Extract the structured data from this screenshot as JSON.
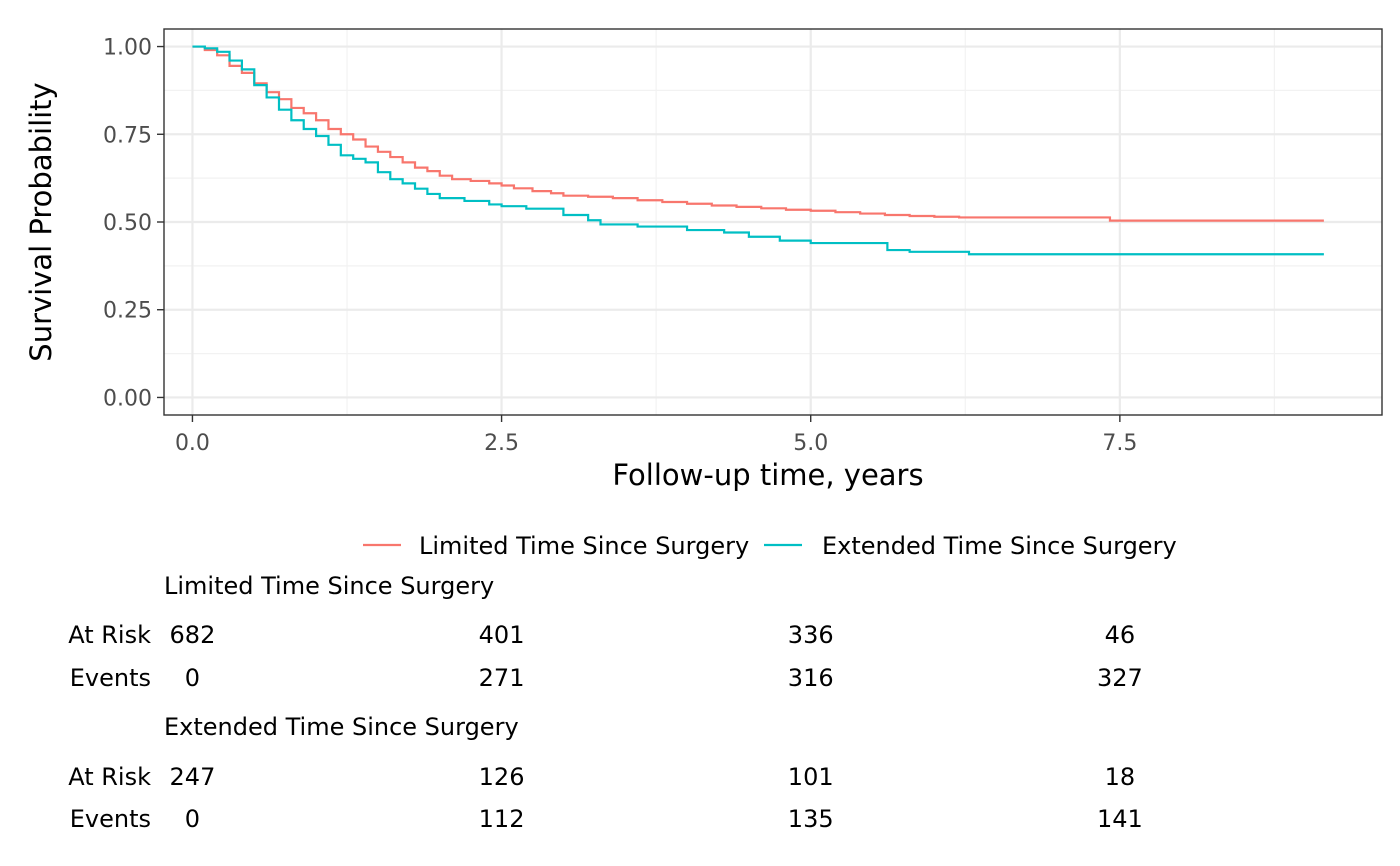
{
  "chart_data": {
    "type": "line",
    "subtype": "kaplan-meier step",
    "title": "",
    "xlabel": "Follow-up time, years",
    "ylabel": "Survival Probability",
    "xlim": [
      -0.23,
      9.62
    ],
    "ylim": [
      -0.05,
      1.05
    ],
    "x_ticks": [
      0,
      2.5,
      5,
      7.5
    ],
    "x_tick_labels": [
      "0.0",
      "2.5",
      "5.0",
      "7.5"
    ],
    "y_ticks": [
      0,
      0.25,
      0.5,
      0.75,
      1
    ],
    "y_tick_labels": [
      "0.00",
      "0.25",
      "0.50",
      "0.75",
      "1.00"
    ],
    "grid": true,
    "legend_position": "bottom",
    "series": [
      {
        "name": "Limited Time Since Surgery",
        "color": "#F8766D",
        "points": [
          [
            0,
            1.0
          ],
          [
            0.1,
            0.99
          ],
          [
            0.2,
            0.975
          ],
          [
            0.3,
            0.945
          ],
          [
            0.4,
            0.925
          ],
          [
            0.5,
            0.895
          ],
          [
            0.6,
            0.87
          ],
          [
            0.7,
            0.85
          ],
          [
            0.8,
            0.825
          ],
          [
            0.9,
            0.81
          ],
          [
            1.0,
            0.79
          ],
          [
            1.1,
            0.765
          ],
          [
            1.2,
            0.75
          ],
          [
            1.3,
            0.735
          ],
          [
            1.4,
            0.715
          ],
          [
            1.5,
            0.7
          ],
          [
            1.6,
            0.685
          ],
          [
            1.7,
            0.67
          ],
          [
            1.8,
            0.655
          ],
          [
            1.9,
            0.645
          ],
          [
            2.0,
            0.632
          ],
          [
            2.1,
            0.622
          ],
          [
            2.25,
            0.617
          ],
          [
            2.4,
            0.61
          ],
          [
            2.5,
            0.604
          ],
          [
            2.6,
            0.596
          ],
          [
            2.75,
            0.588
          ],
          [
            2.9,
            0.582
          ],
          [
            3.0,
            0.575
          ],
          [
            3.2,
            0.572
          ],
          [
            3.4,
            0.568
          ],
          [
            3.6,
            0.562
          ],
          [
            3.8,
            0.557
          ],
          [
            4.0,
            0.552
          ],
          [
            4.2,
            0.547
          ],
          [
            4.4,
            0.543
          ],
          [
            4.6,
            0.539
          ],
          [
            4.8,
            0.535
          ],
          [
            5.0,
            0.532
          ],
          [
            5.2,
            0.528
          ],
          [
            5.4,
            0.524
          ],
          [
            5.6,
            0.52
          ],
          [
            5.8,
            0.517
          ],
          [
            6.0,
            0.515
          ],
          [
            6.2,
            0.513
          ],
          [
            6.5,
            0.513
          ],
          [
            7.0,
            0.513
          ],
          [
            7.4,
            0.513
          ],
          [
            7.42,
            0.504
          ],
          [
            8.0,
            0.504
          ],
          [
            8.6,
            0.504
          ],
          [
            9.15,
            0.504
          ]
        ]
      },
      {
        "name": "Extended Time Since Surgery",
        "color": "#00BFC4",
        "points": [
          [
            0,
            1.0
          ],
          [
            0.1,
            0.995
          ],
          [
            0.2,
            0.985
          ],
          [
            0.3,
            0.96
          ],
          [
            0.4,
            0.935
          ],
          [
            0.5,
            0.89
          ],
          [
            0.6,
            0.855
          ],
          [
            0.7,
            0.82
          ],
          [
            0.8,
            0.79
          ],
          [
            0.9,
            0.765
          ],
          [
            1.0,
            0.745
          ],
          [
            1.1,
            0.72
          ],
          [
            1.2,
            0.69
          ],
          [
            1.3,
            0.68
          ],
          [
            1.4,
            0.67
          ],
          [
            1.5,
            0.642
          ],
          [
            1.6,
            0.622
          ],
          [
            1.7,
            0.61
          ],
          [
            1.8,
            0.595
          ],
          [
            1.9,
            0.58
          ],
          [
            2.0,
            0.568
          ],
          [
            2.2,
            0.56
          ],
          [
            2.4,
            0.55
          ],
          [
            2.5,
            0.545
          ],
          [
            2.7,
            0.538
          ],
          [
            3.0,
            0.52
          ],
          [
            3.2,
            0.505
          ],
          [
            3.3,
            0.493
          ],
          [
            3.6,
            0.487
          ],
          [
            4.0,
            0.477
          ],
          [
            4.3,
            0.47
          ],
          [
            4.5,
            0.458
          ],
          [
            4.75,
            0.447
          ],
          [
            5.0,
            0.44
          ],
          [
            5.6,
            0.44
          ],
          [
            5.62,
            0.42
          ],
          [
            5.8,
            0.415
          ],
          [
            6.0,
            0.415
          ],
          [
            6.28,
            0.408
          ],
          [
            7.0,
            0.408
          ],
          [
            8.0,
            0.408
          ],
          [
            9.15,
            0.408
          ]
        ]
      }
    ]
  },
  "risk_table": {
    "row_labels": {
      "at_risk": "At Risk",
      "events": "Events"
    },
    "time_points": [
      0,
      2.5,
      5,
      7.5
    ],
    "groups": [
      {
        "name": "Limited Time Since Surgery",
        "at_risk": [
          "682",
          "401",
          "336",
          "46"
        ],
        "events": [
          "0",
          "271",
          "316",
          "327"
        ]
      },
      {
        "name": "Extended Time Since Surgery",
        "at_risk": [
          "247",
          "126",
          "101",
          "18"
        ],
        "events": [
          "0",
          "112",
          "135",
          "141"
        ]
      }
    ]
  }
}
